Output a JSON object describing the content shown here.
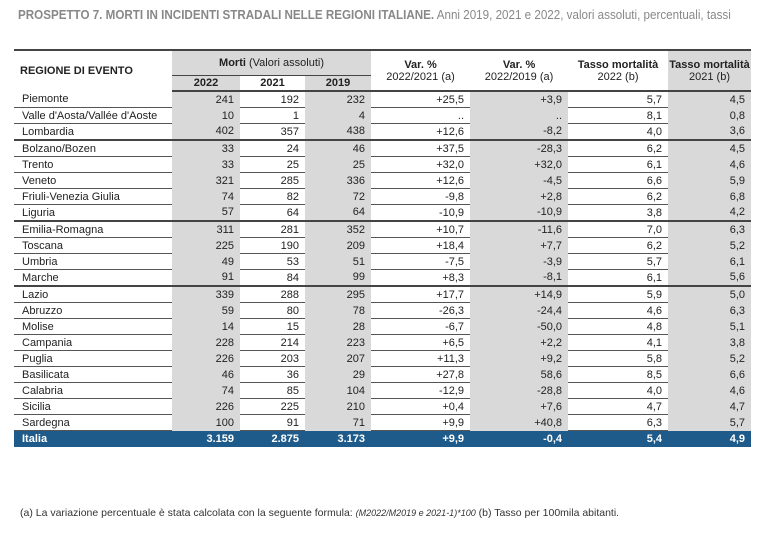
{
  "title": {
    "bold": "PROSPETTO 7. MORTI IN INCIDENTI STRADALI NELLE REGIONI ITALIANE.",
    "rest": " Anni 2019, 2021 e 2022, valori assoluti, percentuali, tassi"
  },
  "header": {
    "region": "REGIONE DI EVENTO",
    "morti": "Morti",
    "morti_sub": " (Valori assoluti)",
    "y2022": "2022",
    "y2021": "2021",
    "y2019": "2019",
    "var1": "Var. %",
    "var1_sub": "2022/2021 (a)",
    "var2": "Var. %",
    "var2_sub": "2022/2019 (a)",
    "t1": "Tasso mortalità",
    "t1_sub": "2022 (b)",
    "t2": "Tasso mortalità",
    "t2_sub": "2021 (b)"
  },
  "rows": [
    [
      "Piemonte",
      "241",
      "192",
      "232",
      "+25,5",
      "+3,9",
      "5,7",
      "4,5"
    ],
    [
      "Valle d'Aosta/Vallée d'Aoste",
      "10",
      "1",
      "4",
      "..",
      "..",
      "8,1",
      "0,8"
    ],
    [
      "Lombardia",
      "402",
      "357",
      "438",
      "+12,6",
      "-8,2",
      "4,0",
      "3,6"
    ],
    [
      "Bolzano/Bozen",
      "33",
      "24",
      "46",
      "+37,5",
      "-28,3",
      "6,2",
      "4,5"
    ],
    [
      "Trento",
      "33",
      "25",
      "25",
      "+32,0",
      "+32,0",
      "6,1",
      "4,6"
    ],
    [
      "Veneto",
      "321",
      "285",
      "336",
      "+12,6",
      "-4,5",
      "6,6",
      "5,9"
    ],
    [
      "Friuli-Venezia Giulia",
      "74",
      "82",
      "72",
      "-9,8",
      "+2,8",
      "6,2",
      "6,8"
    ],
    [
      "Liguria",
      "57",
      "64",
      "64",
      "-10,9",
      "-10,9",
      "3,8",
      "4,2"
    ],
    [
      "Emilia-Romagna",
      "311",
      "281",
      "352",
      "+10,7",
      "-11,6",
      "7,0",
      "6,3"
    ],
    [
      "Toscana",
      "225",
      "190",
      "209",
      "+18,4",
      "+7,7",
      "6,2",
      "5,2"
    ],
    [
      "Umbria",
      "49",
      "53",
      "51",
      "-7,5",
      "-3,9",
      "5,7",
      "6,1"
    ],
    [
      "Marche",
      "91",
      "84",
      "99",
      "+8,3",
      "-8,1",
      "6,1",
      "5,6"
    ],
    [
      "Lazio",
      "339",
      "288",
      "295",
      "+17,7",
      "+14,9",
      "5,9",
      "5,0"
    ],
    [
      "Abruzzo",
      "59",
      "80",
      "78",
      "-26,3",
      "-24,4",
      "4,6",
      "6,3"
    ],
    [
      "Molise",
      "14",
      "15",
      "28",
      "-6,7",
      "-50,0",
      "4,8",
      "5,1"
    ],
    [
      "Campania",
      "228",
      "214",
      "223",
      "+6,5",
      "+2,2",
      "4,1",
      "3,8"
    ],
    [
      "Puglia",
      "226",
      "203",
      "207",
      "+11,3",
      "+9,2",
      "5,8",
      "5,2"
    ],
    [
      "Basilicata",
      "46",
      "36",
      "29",
      "+27,8",
      "58,6",
      "8,5",
      "6,6"
    ],
    [
      "Calabria",
      "74",
      "85",
      "104",
      "-12,9",
      "-28,8",
      "4,0",
      "4,6"
    ],
    [
      "Sicilia",
      "226",
      "225",
      "210",
      "+0,4",
      "+7,6",
      "4,7",
      "4,7"
    ],
    [
      "Sardegna",
      "100",
      "91",
      "71",
      "+9,9",
      "+40,8",
      "6,3",
      "5,7"
    ]
  ],
  "total": [
    "Italia",
    "3.159",
    "2.875",
    "3.173",
    "+9,9",
    "-0,4",
    "5,4",
    "4,9"
  ],
  "footnote": {
    "a": "(a)   La variazione percentuale è stata calcolata con la seguente formula: ",
    "formula": "(M2022/M2019 e 2021-1)*100",
    "b": " (b) Tasso per 100mila abitanti."
  },
  "colors": {
    "total_bg": "#1f5b8a",
    "shade": "#d9d9d9"
  }
}
